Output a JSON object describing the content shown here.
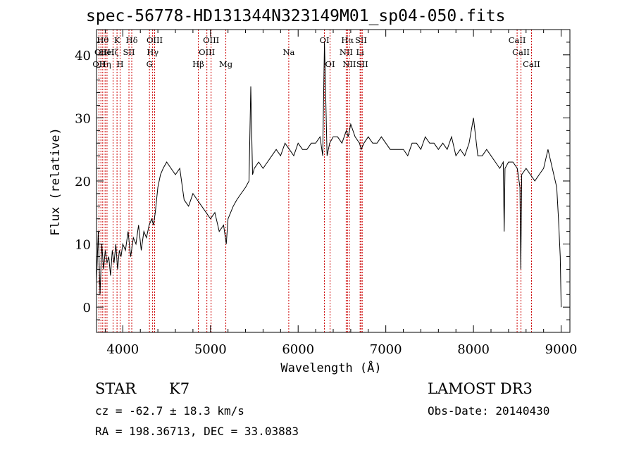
{
  "chart_data": {
    "type": "line",
    "title": "spec-56778-HD131344N323149M01_sp04-050.fits",
    "xlabel": "Wavelength (Å)",
    "ylabel": "Flux (relative)",
    "xlim": [
      3700,
      9100
    ],
    "ylim": [
      -4,
      44
    ],
    "xticks": [
      4000,
      5000,
      6000,
      7000,
      8000,
      9000
    ],
    "yticks": [
      0,
      10,
      20,
      30,
      40
    ],
    "line_color": "#000000",
    "marker_color": "#cc0000",
    "spectrum": {
      "x": [
        3700,
        3720,
        3740,
        3760,
        3780,
        3800,
        3820,
        3840,
        3860,
        3880,
        3900,
        3920,
        3940,
        3960,
        3980,
        4000,
        4030,
        4060,
        4090,
        4120,
        4150,
        4180,
        4210,
        4240,
        4270,
        4300,
        4330,
        4350,
        4370,
        4400,
        4430,
        4460,
        4500,
        4550,
        4600,
        4650,
        4700,
        4750,
        4800,
        4850,
        4900,
        4950,
        5000,
        5050,
        5100,
        5150,
        5180,
        5200,
        5230,
        5260,
        5300,
        5350,
        5400,
        5440,
        5460,
        5480,
        5500,
        5550,
        5600,
        5650,
        5700,
        5750,
        5800,
        5850,
        5900,
        5950,
        6000,
        6050,
        6100,
        6150,
        6200,
        6250,
        6280,
        6300,
        6330,
        6360,
        6400,
        6450,
        6500,
        6550,
        6570,
        6600,
        6650,
        6700,
        6720,
        6750,
        6800,
        6850,
        6900,
        6950,
        7000,
        7050,
        7100,
        7150,
        7200,
        7250,
        7300,
        7350,
        7400,
        7450,
        7500,
        7550,
        7600,
        7650,
        7700,
        7750,
        7800,
        7850,
        7900,
        7950,
        8000,
        8050,
        8100,
        8150,
        8200,
        8250,
        8300,
        8340,
        8350,
        8360,
        8400,
        8450,
        8500,
        8530,
        8540,
        8550,
        8600,
        8650,
        8700,
        8750,
        8800,
        8850,
        8900,
        8950,
        8970,
        8990,
        9000
      ],
      "y": [
        4,
        12,
        2,
        10,
        6,
        9,
        7,
        8,
        5,
        9,
        7,
        10,
        6,
        9,
        8,
        10,
        9,
        12,
        8,
        11,
        10,
        13,
        9,
        12,
        11,
        13,
        14,
        13,
        15,
        19,
        21,
        22,
        23,
        22,
        21,
        22,
        17,
        16,
        18,
        17,
        16,
        15,
        14,
        15,
        12,
        13,
        10,
        14,
        15,
        16,
        17,
        18,
        19,
        20,
        35,
        21,
        22,
        23,
        22,
        23,
        24,
        25,
        24,
        26,
        25,
        24,
        26,
        25,
        25,
        26,
        26,
        27,
        24,
        42,
        24,
        26,
        27,
        27,
        26,
        28,
        27,
        29,
        27,
        26,
        25,
        26,
        27,
        26,
        26,
        27,
        26,
        25,
        25,
        25,
        25,
        24,
        26,
        26,
        25,
        27,
        26,
        26,
        25,
        26,
        25,
        27,
        24,
        25,
        24,
        26,
        30,
        24,
        24,
        25,
        24,
        23,
        22,
        23,
        12,
        22,
        23,
        23,
        22,
        19,
        6,
        21,
        22,
        21,
        20,
        21,
        22,
        25,
        22,
        19,
        14,
        8,
        0
      ]
    },
    "lines": [
      {
        "wave": 3728,
        "label": "OII",
        "row": 2
      },
      {
        "wave": 3750,
        "label": "OII",
        "row": 1
      },
      {
        "wave": 3771,
        "label": "Hθ",
        "row": 0
      },
      {
        "wave": 3798,
        "label": "Hη",
        "row": 2
      },
      {
        "wave": 3820,
        "label": "HeI",
        "row": 1
      },
      {
        "wave": 3889,
        "label": "Hζ",
        "row": 1
      },
      {
        "wave": 3934,
        "label": "K",
        "row": 0
      },
      {
        "wave": 3969,
        "label": "H",
        "row": 2
      },
      {
        "wave": 4070,
        "label": "SII",
        "row": 1
      },
      {
        "wave": 4102,
        "label": "Hδ",
        "row": 0
      },
      {
        "wave": 4304,
        "label": "G",
        "row": 2
      },
      {
        "wave": 4340,
        "label": "Hγ",
        "row": 1
      },
      {
        "wave": 4363,
        "label": "OIII",
        "row": 0
      },
      {
        "wave": 4861,
        "label": "Hβ",
        "row": 2
      },
      {
        "wave": 4959,
        "label": "OIII",
        "row": 1
      },
      {
        "wave": 5007,
        "label": "OIII",
        "row": 0
      },
      {
        "wave": 5175,
        "label": "Mg",
        "row": 2
      },
      {
        "wave": 5893,
        "label": "Na",
        "row": 1
      },
      {
        "wave": 6300,
        "label": "OI",
        "row": 0
      },
      {
        "wave": 6364,
        "label": "OI",
        "row": 2
      },
      {
        "wave": 6548,
        "label": "NII",
        "row": 1
      },
      {
        "wave": 6563,
        "label": "Hα",
        "row": 0
      },
      {
        "wave": 6584,
        "label": "NII",
        "row": 2
      },
      {
        "wave": 6707,
        "label": "Li",
        "row": 1
      },
      {
        "wave": 6717,
        "label": "SII",
        "row": 0
      },
      {
        "wave": 6731,
        "label": "SII",
        "row": 2
      },
      {
        "wave": 8498,
        "label": "CaII",
        "row": 0
      },
      {
        "wave": 8542,
        "label": "CaII",
        "row": 1
      },
      {
        "wave": 8662,
        "label": "CaII",
        "row": 2
      }
    ]
  },
  "info": {
    "obj_class": "STAR",
    "subclass": "K7",
    "survey": "LAMOST DR3",
    "redshift": "cz = -62.7 ± 18.3 km/s",
    "obs_date": "Obs-Date: 20140430",
    "coords": "RA = 198.36713, DEC =  33.03883"
  }
}
